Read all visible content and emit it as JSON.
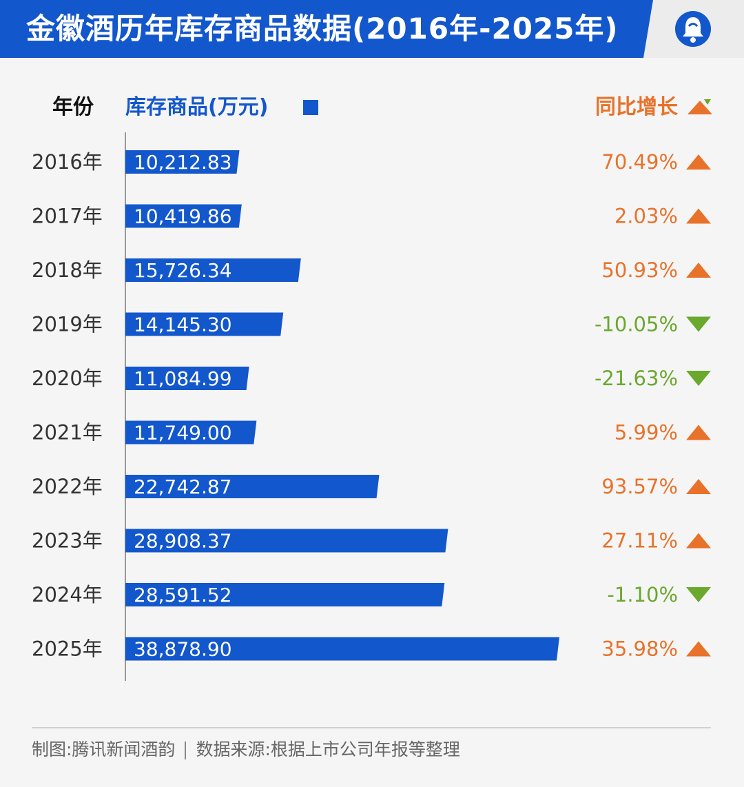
{
  "header": {
    "title": "金徽酒历年库存商品数据(2016年-2025年)"
  },
  "columns": {
    "year": "年份",
    "value": "库存商品(万元)",
    "growth": "同比增长"
  },
  "colors": {
    "bar": "#1357cc",
    "up": "#e8722a",
    "down": "#6aa82e"
  },
  "chart_data": {
    "type": "bar",
    "orientation": "horizontal",
    "categories": [
      "2016年",
      "2017年",
      "2018年",
      "2019年",
      "2020年",
      "2021年",
      "2022年",
      "2023年",
      "2024年",
      "2025年"
    ],
    "values": [
      10212.83,
      10419.86,
      15726.34,
      14145.3,
      11084.99,
      11749.0,
      22742.87,
      28908.37,
      28591.52,
      38878.9
    ],
    "value_labels": [
      "10,212.83",
      "10,419.86",
      "15,726.34",
      "14,145.30",
      "11,084.99",
      "11,749.00",
      "22,742.87",
      "28,908.37",
      "28,591.52",
      "38,878.90"
    ],
    "growth_labels": [
      "70.49%",
      "2.03%",
      "50.93%",
      "-10.05%",
      "-21.63%",
      "5.99%",
      "93.57%",
      "27.11%",
      "-1.10%",
      "35.98%"
    ],
    "growth_values": [
      70.49,
      2.03,
      50.93,
      -10.05,
      -21.63,
      5.99,
      93.57,
      27.11,
      -1.1,
      35.98
    ],
    "ylabel": "库存商品(万元)",
    "xlim": [
      0,
      40000
    ]
  },
  "footer": {
    "credit": "制图:腾讯新闻酒韵",
    "source": "数据来源:根据上市公司年报等整理"
  }
}
